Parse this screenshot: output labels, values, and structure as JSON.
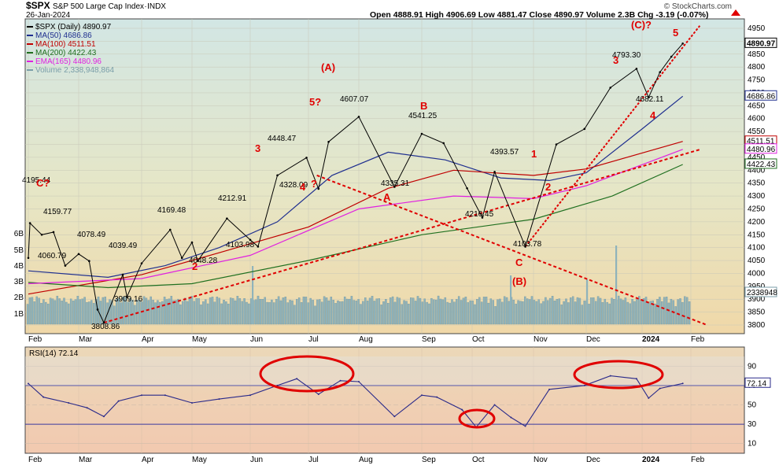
{
  "header": {
    "title_symbol": "$SPX",
    "title_desc": "S&P 500 Large Cap Index",
    "exchange": "INDX",
    "date": "26-Jan-2024",
    "ohlc": "Open 4888.91  High 4906.69  Low 4881.47  Close 4890.97  Volume 2.3B  Chg -3.19 (-0.07%)",
    "watermark": "© StockCharts.com"
  },
  "legend": [
    {
      "text": "$SPX (Daily) 4890.97",
      "color": "#000000"
    },
    {
      "text": "MA(50) 4686.86",
      "color": "#1f2f8f"
    },
    {
      "text": "MA(100) 4511.51",
      "color": "#c00000"
    },
    {
      "text": "MA(200) 4422.43",
      "color": "#207020"
    },
    {
      "text": "EMA(165) 4480.96",
      "color": "#e020e0"
    },
    {
      "text": "Volume 2,338,948,864",
      "color": "#7a9ea8"
    }
  ],
  "rsi_label": "RSI(14) 72.14",
  "colors": {
    "price_bg": "#d5e8de",
    "rsi_bg": "#e6d5c3",
    "wave_red": "#e00000",
    "ma50": "#1f2f8f",
    "ma100": "#c00000",
    "ma200": "#207020",
    "ema165": "#e020e0",
    "volume": "#8fb3bb"
  },
  "chart_data": {
    "type": "line",
    "x_ticks": [
      "Feb",
      "Mar",
      "Apr",
      "May",
      "Jun",
      "Jul",
      "Aug",
      "Sep",
      "Oct",
      "Nov",
      "Dec",
      "2024",
      "Feb"
    ],
    "y_ticks": [
      3800,
      3850,
      3900,
      3950,
      4000,
      4050,
      4100,
      4150,
      4200,
      4250,
      4300,
      4350,
      4400,
      4450,
      4500,
      4550,
      4600,
      4650,
      4700,
      4750,
      4800,
      4850,
      4900,
      4950
    ],
    "ylim": [
      3760,
      4960
    ],
    "volume_ticks": [
      "1B",
      "2B",
      "3B",
      "4B",
      "5B",
      "6B"
    ],
    "last_value_labels": [
      "4890.97",
      "4686.86",
      "4511.51",
      "4480.96",
      "4422.43",
      "2338948"
    ],
    "price_series": {
      "name": "$SPX (Daily)",
      "points": [
        [
          "Feb 01",
          4060
        ],
        [
          "Feb 02",
          4195
        ],
        [
          "Feb 09",
          4150
        ],
        [
          "Feb 16",
          4160
        ],
        [
          "Feb 23",
          4030
        ],
        [
          "Mar 01",
          4075
        ],
        [
          "Mar 06",
          4048
        ],
        [
          "Mar 10",
          3860
        ],
        [
          "Mar 13",
          3808.86
        ],
        [
          "Mar 22",
          3995
        ],
        [
          "Mar 24",
          3909.16
        ],
        [
          "Mar 31",
          4039
        ],
        [
          "Apr 18",
          4169.48
        ],
        [
          "Apr 25",
          4060
        ],
        [
          "May 01",
          4120
        ],
        [
          "May 04",
          4048.28
        ],
        [
          "May 19",
          4212.91
        ],
        [
          "May 31",
          4130
        ],
        [
          "Jun 05",
          4103.98
        ],
        [
          "Jun 15",
          4380
        ],
        [
          "Jun 30",
          4448.47
        ],
        [
          "Jul 07",
          4328.09
        ],
        [
          "Jul 13",
          4510
        ],
        [
          "Jul 31",
          4607.07
        ],
        [
          "Aug 18",
          4335.31
        ],
        [
          "Aug 31",
          4541.25
        ],
        [
          "Sep 14",
          4505
        ],
        [
          "Sep 28",
          4330
        ],
        [
          "Oct 06",
          4216.45
        ],
        [
          "Oct 12",
          4393.57
        ],
        [
          "Oct 27",
          4103.78
        ],
        [
          "Nov 14",
          4500
        ],
        [
          "Nov 30",
          4560
        ],
        [
          "Dec 14",
          4720
        ],
        [
          "Dec 28",
          4793.3
        ],
        [
          "Jan 05",
          4682.11
        ],
        [
          "Jan 12",
          4780
        ],
        [
          "Jan 19",
          4840
        ],
        [
          "Jan 26",
          4890.97
        ]
      ]
    },
    "moving_averages": [
      {
        "name": "MA(50)",
        "points": [
          [
            "Feb 01",
            4010
          ],
          [
            "Mar 15",
            3985
          ],
          [
            "Apr 15",
            4030
          ],
          [
            "May 15",
            4100
          ],
          [
            "Jun 15",
            4200
          ],
          [
            "Jul 15",
            4380
          ],
          [
            "Aug 15",
            4470
          ],
          [
            "Sep 15",
            4440
          ],
          [
            "Oct 15",
            4370
          ],
          [
            "Nov 10",
            4360
          ],
          [
            "Dec 01",
            4390
          ],
          [
            "Jan 01",
            4560
          ],
          [
            "Jan 26",
            4686.86
          ]
        ]
      },
      {
        "name": "MA(100)",
        "points": [
          [
            "Feb 01",
            3920
          ],
          [
            "Apr 01",
            3995
          ],
          [
            "May 15",
            4080
          ],
          [
            "Jul 01",
            4180
          ],
          [
            "Aug 15",
            4330
          ],
          [
            "Sep 20",
            4400
          ],
          [
            "Oct 31",
            4380
          ],
          [
            "Dec 01",
            4405
          ],
          [
            "Jan 26",
            4511.51
          ]
        ]
      },
      {
        "name": "MA(200)",
        "points": [
          [
            "Feb 01",
            3965
          ],
          [
            "Mar 15",
            3945
          ],
          [
            "May 01",
            3960
          ],
          [
            "Jul 01",
            4050
          ],
          [
            "Sep 01",
            4150
          ],
          [
            "Oct 31",
            4210
          ],
          [
            "Dec 15",
            4300
          ],
          [
            "Jan 26",
            4422.43
          ]
        ]
      },
      {
        "name": "EMA(165)",
        "points": [
          [
            "Feb 01",
            3960
          ],
          [
            "Apr 01",
            3980
          ],
          [
            "Jun 01",
            4070
          ],
          [
            "Aug 01",
            4250
          ],
          [
            "Sep 20",
            4300
          ],
          [
            "Oct 31",
            4290
          ],
          [
            "Dec 01",
            4340
          ],
          [
            "Jan 26",
            4480.96
          ]
        ]
      }
    ],
    "trend_lines": [
      {
        "from": [
          "Mar 13",
          3808.86
        ],
        "to": [
          "Feb 06",
          4480
        ]
      },
      {
        "from": [
          "Jul 06",
          4380
        ],
        "to": [
          "Feb 10",
          3800
        ]
      },
      {
        "from": [
          "Oct 27",
          4103.78
        ],
        "to": [
          "Feb 06",
          4960
        ]
      }
    ],
    "price_annotations": [
      "4195.44",
      "4159.77",
      "4078.49",
      "4060.79",
      "4039.49",
      "3909.16",
      "3808.86",
      "4169.48",
      "4048.28",
      "4212.91",
      "4103.98",
      "4448.47",
      "4328.09",
      "4607.07",
      "4335.31",
      "4541.25",
      "4216.45",
      "4393.57",
      "4103.78",
      "4793.30",
      "4682.11"
    ],
    "wave_labels": [
      "C?",
      "2",
      "3",
      "4",
      "?",
      "(A)",
      "5?",
      "A",
      "B",
      "1",
      "2",
      "C",
      "(B)",
      "3",
      "4",
      "(C)?",
      "5"
    ],
    "rsi": {
      "ylim": [
        0,
        100
      ],
      "y_ticks": [
        10,
        30,
        50,
        70,
        90
      ],
      "last_value": 72.14,
      "points": [
        [
          "Feb 01",
          72
        ],
        [
          "Feb 10",
          58
        ],
        [
          "Feb 25",
          52
        ],
        [
          "Mar 05",
          47
        ],
        [
          "Mar 13",
          38
        ],
        [
          "Mar 20",
          54
        ],
        [
          "Apr 01",
          60
        ],
        [
          "Apr 15",
          60
        ],
        [
          "May 01",
          52
        ],
        [
          "May 15",
          56
        ],
        [
          "Jun 01",
          60
        ],
        [
          "Jun 15",
          70
        ],
        [
          "Jun 25",
          77
        ],
        [
          "Jul 07",
          61
        ],
        [
          "Jul 20",
          75
        ],
        [
          "Jul 31",
          74
        ],
        [
          "Aug 18",
          38
        ],
        [
          "Aug 31",
          60
        ],
        [
          "Sep 10",
          58
        ],
        [
          "Sep 25",
          45
        ],
        [
          "Oct 03",
          27
        ],
        [
          "Oct 12",
          50
        ],
        [
          "Oct 20",
          37
        ],
        [
          "Oct 27",
          28
        ],
        [
          "Nov 10",
          66
        ],
        [
          "Nov 30",
          70
        ],
        [
          "Dec 14",
          80
        ],
        [
          "Dec 28",
          77
        ],
        [
          "Jan 05",
          57
        ],
        [
          "Jan 12",
          67
        ],
        [
          "Jan 26",
          72.14
        ]
      ]
    }
  }
}
